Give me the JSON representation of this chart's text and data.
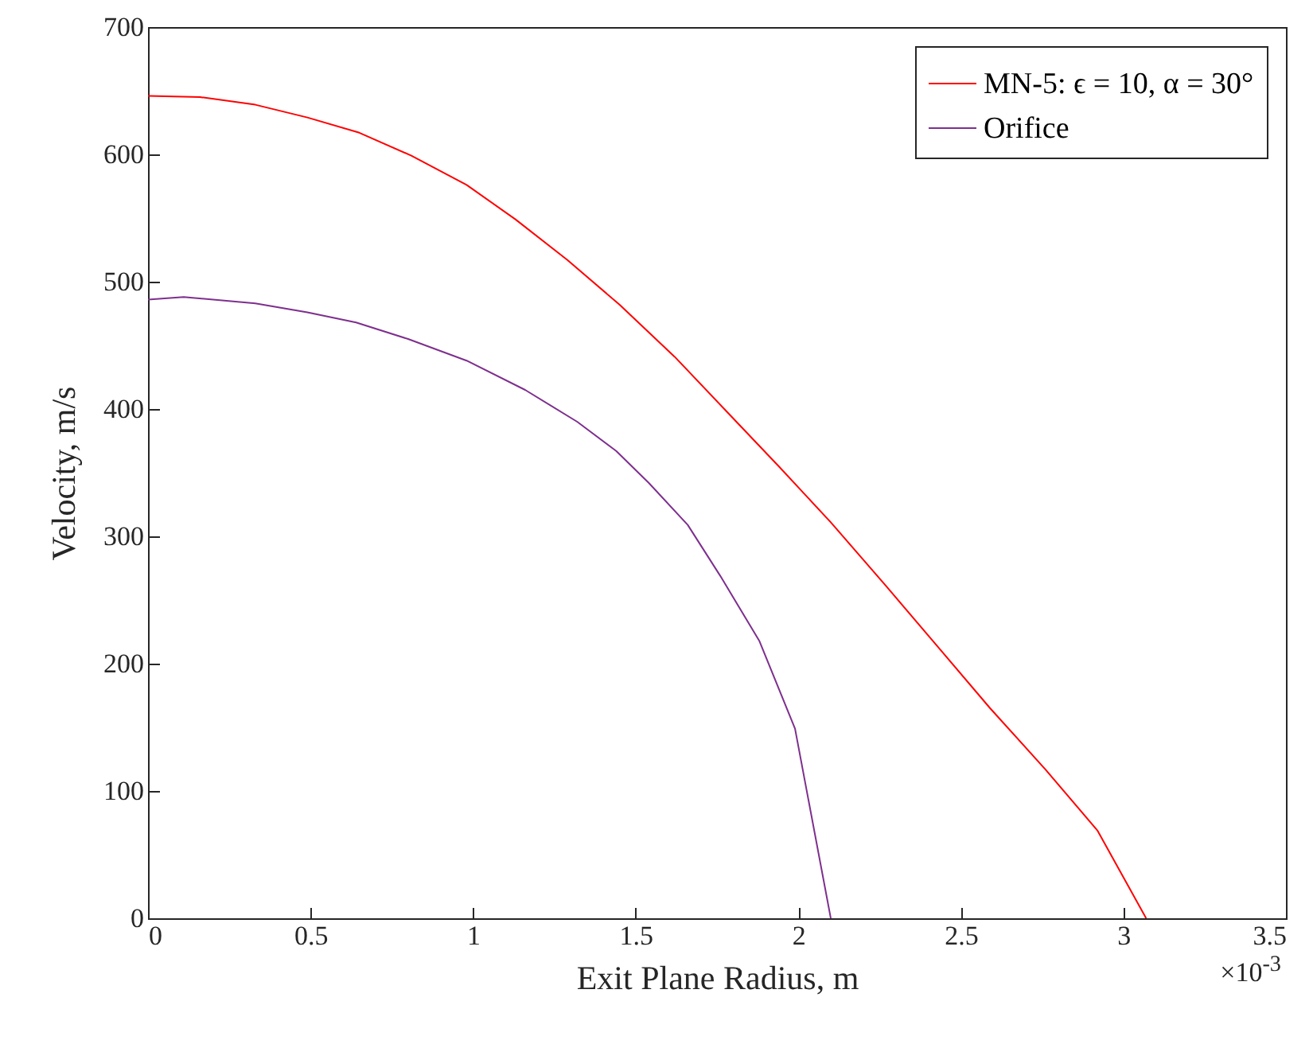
{
  "chart_data": {
    "type": "line",
    "xlabel": "Exit Plane Radius, m",
    "ylabel": "Velocity, m/s",
    "xlim": [
      0,
      3.5
    ],
    "xticks": [
      0,
      0.5,
      1,
      1.5,
      2,
      2.5,
      3,
      3.5
    ],
    "ylim": [
      0,
      700
    ],
    "yticks": [
      0,
      100,
      200,
      300,
      400,
      500,
      600,
      700
    ],
    "grid": false,
    "legend": "top right",
    "marker": "none",
    "line_style": "solid",
    "annotations": [
      "×10$^{-3}$"
    ],
    "series": [
      {
        "name": "MN-5: ϵ = 10, α = 30°",
        "color": "#ff0000",
        "x": [
          0,
          0.16,
          0.33,
          0.49,
          0.65,
          0.81,
          0.98,
          1.13,
          1.29,
          1.45,
          1.62,
          1.78,
          1.94,
          2.1,
          2.27,
          2.43,
          2.59,
          2.76,
          2.92,
          3.07
        ],
        "values": [
          646,
          645,
          639,
          629,
          617,
          599,
          576,
          549,
          517,
          482,
          441,
          398,
          355,
          311,
          261,
          213,
          165,
          117,
          69,
          0
        ]
      },
      {
        "name": "Orifice",
        "color": "#7e2f8e",
        "x": [
          0,
          0.11,
          0.33,
          0.49,
          0.64,
          0.8,
          0.98,
          1.16,
          1.32,
          1.44,
          1.54,
          1.66,
          1.76,
          1.88,
          1.99,
          2.1
        ],
        "values": [
          486,
          488,
          483,
          476,
          468,
          455,
          438,
          415,
          390,
          367,
          342,
          309,
          269,
          218,
          149,
          0
        ]
      }
    ]
  }
}
